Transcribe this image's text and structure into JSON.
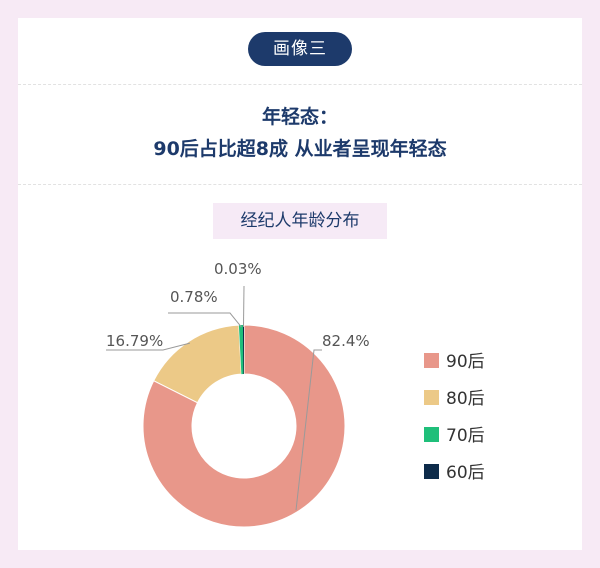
{
  "badge": "画像三",
  "headline": {
    "line1": "年轻态：",
    "line2": "90后占比超8成 从业者呈现年轻态"
  },
  "chart_data": {
    "type": "pie",
    "title": "经纪人年龄分布",
    "categories": [
      "90后",
      "80后",
      "70后",
      "60后"
    ],
    "values": [
      82.4,
      16.79,
      0.78,
      0.03
    ],
    "labels": [
      "82.4%",
      "16.79%",
      "0.78%",
      "0.03%"
    ],
    "colors": [
      "#e8978a",
      "#ecc987",
      "#1fbf7a",
      "#0d2b4a"
    ],
    "legend": "right"
  }
}
